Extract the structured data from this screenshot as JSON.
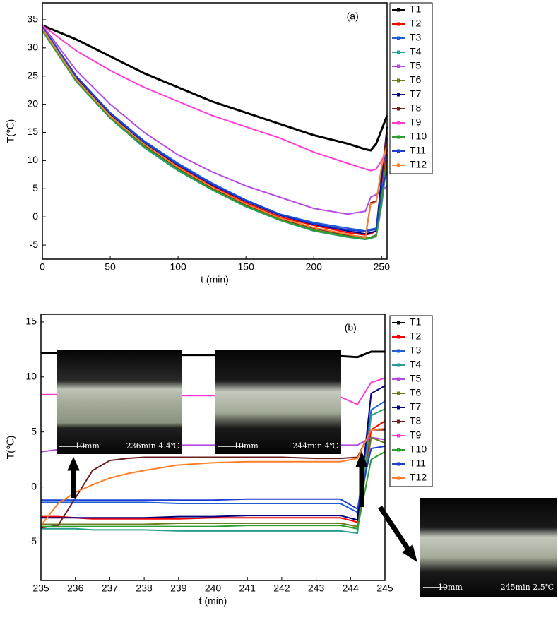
{
  "chart_data": [
    {
      "type": "line",
      "panel_label": "(a)",
      "x_label": "t (min)",
      "y_label": "T(℃)",
      "xlim": [
        0,
        254
      ],
      "ylim": [
        -7.5,
        38
      ],
      "xticks": [
        0,
        50,
        100,
        150,
        200,
        250
      ],
      "yticks": [
        -5,
        0,
        5,
        10,
        15,
        20,
        25,
        30,
        35
      ],
      "x": [
        0,
        25,
        50,
        75,
        100,
        125,
        150,
        175,
        200,
        225,
        238,
        242,
        246,
        250,
        254
      ],
      "series": [
        {
          "name": "T1",
          "color": "#000000",
          "values": [
            34,
            31.5,
            28.5,
            25.5,
            23,
            20.5,
            18.5,
            16.5,
            14.5,
            13,
            12,
            11.8,
            13,
            15.5,
            18
          ]
        },
        {
          "name": "T2",
          "color": "#ff0000",
          "values": [
            33.5,
            24.5,
            18,
            13,
            9,
            5.5,
            2.5,
            0,
            -1.5,
            -2.8,
            -3.2,
            -3,
            -2.5,
            4,
            12
          ]
        },
        {
          "name": "T3",
          "color": "#1f5fd6",
          "values": [
            33.8,
            25,
            18.5,
            13.5,
            9.5,
            6,
            3,
            0.5,
            -1,
            -2,
            -2.5,
            -2.2,
            -2,
            6,
            14
          ]
        },
        {
          "name": "T4",
          "color": "#2a9d8f",
          "values": [
            33,
            24,
            17.5,
            12.3,
            8.2,
            4.8,
            1.8,
            -0.6,
            -2.5,
            -3.6,
            -4,
            -3.8,
            -3.5,
            2,
            10
          ]
        },
        {
          "name": "T5",
          "color": "#b44be1",
          "values": [
            34,
            26,
            20,
            15,
            11,
            8,
            5.5,
            3.5,
            1.5,
            0.5,
            1,
            3.5,
            4,
            4.5,
            5.5
          ]
        },
        {
          "name": "T6",
          "color": "#6b7d1f",
          "values": [
            33.2,
            24.2,
            17.7,
            12.6,
            8.5,
            5,
            2,
            -0.5,
            -2.3,
            -3.4,
            -3.8,
            -3.6,
            -3.2,
            3,
            11
          ]
        },
        {
          "name": "T7",
          "color": "#000080",
          "values": [
            33.6,
            24.8,
            18.3,
            13.2,
            9.2,
            5.7,
            2.8,
            0.3,
            -1.3,
            -2.5,
            -3,
            -2.8,
            -2.5,
            7,
            16
          ]
        },
        {
          "name": "T8",
          "color": "#6b1f1f",
          "values": [
            33.3,
            24.3,
            17.8,
            12.8,
            8.7,
            5.2,
            2.2,
            -0.3,
            -2,
            -3.2,
            -3.6,
            2.5,
            2.8,
            8,
            15
          ]
        },
        {
          "name": "T9",
          "color": "#ff3bd4",
          "values": [
            34,
            29.5,
            26,
            23,
            20.5,
            18,
            16,
            14,
            11.5,
            9.5,
            8.5,
            8.2,
            8.5,
            10,
            12
          ]
        },
        {
          "name": "T10",
          "color": "#2ca02c",
          "values": [
            33.1,
            24.1,
            17.6,
            12.5,
            8.4,
            4.9,
            1.9,
            -0.5,
            -2.4,
            -3.5,
            -3.9,
            -3.7,
            -3.4,
            4,
            9
          ]
        },
        {
          "name": "T11",
          "color": "#1a3fd6",
          "values": [
            33.7,
            24.9,
            18.4,
            13.3,
            9.3,
            5.8,
            2.9,
            0.4,
            -1.2,
            -2.3,
            -2.6,
            -2.4,
            -2.2,
            5,
            8
          ]
        },
        {
          "name": "T12",
          "color": "#ff7f2a",
          "values": [
            33.4,
            24.4,
            17.9,
            12.9,
            8.8,
            5.3,
            2.3,
            -0.2,
            -1.9,
            -3.1,
            -3.7,
            2.3,
            2.6,
            9,
            13
          ]
        }
      ]
    },
    {
      "type": "line",
      "panel_label": "(b)",
      "x_label": "t (min)",
      "y_label": "T(℃)",
      "xlim": [
        235,
        245
      ],
      "ylim": [
        -8.5,
        15.7
      ],
      "xticks": [
        235,
        236,
        237,
        238,
        239,
        240,
        241,
        242,
        243,
        244,
        245
      ],
      "yticks": [
        -5,
        0,
        5,
        10,
        15
      ],
      "x": [
        235,
        235.5,
        236,
        236.5,
        237,
        237.5,
        238,
        239,
        240,
        241,
        242,
        243,
        243.7,
        244.2,
        244.6,
        245
      ],
      "series": [
        {
          "name": "T1",
          "color": "#000000",
          "values": [
            12.2,
            12.2,
            12.1,
            12.1,
            12,
            12,
            12,
            12,
            12,
            12,
            12,
            12,
            11.9,
            11.8,
            12.3,
            12.3
          ]
        },
        {
          "name": "T2",
          "color": "#ff0000",
          "values": [
            -2.7,
            -2.7,
            -2.8,
            -2.9,
            -2.9,
            -2.9,
            -2.9,
            -2.9,
            -2.8,
            -2.8,
            -2.8,
            -2.8,
            -2.8,
            -3.2,
            5.2,
            6
          ]
        },
        {
          "name": "T3",
          "color": "#1f5fd6",
          "values": [
            -1.4,
            -1.4,
            -1.4,
            -1.4,
            -1.4,
            -1.4,
            -1.4,
            -1.5,
            -1.5,
            -1.5,
            -1.5,
            -1.5,
            -1.5,
            -2.3,
            7,
            7.8
          ]
        },
        {
          "name": "T4",
          "color": "#2a9d8f",
          "values": [
            -3.8,
            -3.8,
            -3.8,
            -3.9,
            -3.9,
            -3.9,
            -3.9,
            -4,
            -4,
            -4,
            -4,
            -4,
            -4,
            -4.2,
            6.5,
            7.1
          ]
        },
        {
          "name": "T5",
          "color": "#b44be1",
          "values": [
            3.2,
            3.4,
            3.5,
            3.6,
            3.7,
            3.7,
            3.7,
            3.8,
            3.8,
            3.8,
            3.8,
            3.8,
            3.8,
            3.8,
            4.5,
            4.3
          ]
        },
        {
          "name": "T6",
          "color": "#6b7d1f",
          "values": [
            -3.4,
            -3.4,
            -3.4,
            -3.4,
            -3.4,
            -3.4,
            -3.4,
            -3.3,
            -3.3,
            -3.3,
            -3.3,
            -3.3,
            -3.3,
            -3.6,
            4.5,
            4
          ]
        },
        {
          "name": "T7",
          "color": "#000080",
          "values": [
            -2.8,
            -2.8,
            -2.8,
            -2.8,
            -2.8,
            -2.8,
            -2.8,
            -2.7,
            -2.7,
            -2.6,
            -2.6,
            -2.6,
            -2.6,
            -3,
            8.5,
            9.2
          ]
        },
        {
          "name": "T8",
          "color": "#6b1f1f",
          "values": [
            -3.7,
            -3.5,
            -1,
            1.5,
            2.4,
            2.6,
            2.7,
            2.7,
            2.7,
            2.7,
            2.7,
            2.6,
            2.6,
            2.7,
            5.2,
            5.2
          ]
        },
        {
          "name": "T9",
          "color": "#ff3bd4",
          "values": [
            8.4,
            8.4,
            8.4,
            8.3,
            8.3,
            8.3,
            8.3,
            8.3,
            8.3,
            8.3,
            8.3,
            8.3,
            8.2,
            7.5,
            9.5,
            9.9
          ]
        },
        {
          "name": "T10",
          "color": "#2ca02c",
          "values": [
            -3.6,
            -3.6,
            -3.6,
            -3.6,
            -3.6,
            -3.6,
            -3.6,
            -3.6,
            -3.6,
            -3.5,
            -3.5,
            -3.5,
            -3.5,
            -3.8,
            2.5,
            3.2
          ]
        },
        {
          "name": "T11",
          "color": "#1a3fd6",
          "values": [
            -1.2,
            -1.2,
            -1.2,
            -1.2,
            -1.2,
            -1.2,
            -1.2,
            -1.2,
            -1.2,
            -1.1,
            -1.1,
            -1.1,
            -1.1,
            -2,
            3.5,
            3.7
          ]
        },
        {
          "name": "T12",
          "color": "#ff7f2a",
          "values": [
            -3.5,
            -1.5,
            -0.5,
            0.2,
            0.8,
            1.2,
            1.5,
            2,
            2.2,
            2.3,
            2.3,
            2.3,
            2.3,
            2.6,
            5.2,
            5.3
          ]
        }
      ],
      "annotations": [
        "10mm",
        "236min 4.4℃",
        "10mm",
        "244min 4℃",
        "10mm",
        "245min 2.5℃"
      ]
    }
  ]
}
